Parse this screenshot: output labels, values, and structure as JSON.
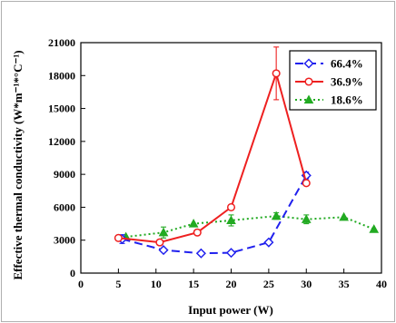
{
  "chart_data": {
    "type": "line",
    "xlabel": "Input power (W)",
    "ylabel": "Effective thermal conductivity (W*m⁻¹*°C⁻¹)",
    "xlim": [
      0,
      40
    ],
    "ylim": [
      0,
      21000
    ],
    "xticks": [
      "0",
      "5",
      "10",
      "15",
      "20",
      "25",
      "30",
      "35",
      "40"
    ],
    "yticks": [
      "0",
      "3000",
      "6000",
      "9000",
      "12000",
      "15000",
      "18000",
      "21000"
    ],
    "grid": false,
    "legend_position": "top-right",
    "series": [
      {
        "name": "66.4%",
        "color": "#2020ee",
        "marker": "open-diamond",
        "line": "dashed",
        "x": [
          5.5,
          11,
          16,
          20,
          25,
          30
        ],
        "y": [
          3100,
          2100,
          1800,
          1850,
          2800,
          8900
        ],
        "err": [
          400,
          0,
          0,
          0,
          0,
          300
        ]
      },
      {
        "name": "36.9%",
        "color": "#ee2020",
        "marker": "open-circle",
        "line": "solid",
        "x": [
          5,
          10.5,
          15.5,
          20,
          26,
          30
        ],
        "y": [
          3200,
          2800,
          3700,
          6000,
          18200,
          8200
        ],
        "err": [
          0,
          0,
          0,
          0,
          2400,
          0
        ]
      },
      {
        "name": "18.6%",
        "color": "#22aa22",
        "marker": "filled-triangle",
        "line": "dotted",
        "x": [
          6,
          11,
          15,
          20,
          26,
          30,
          35,
          39
        ],
        "y": [
          3300,
          3700,
          4500,
          4800,
          5200,
          4900,
          5100,
          4000
        ],
        "err": [
          0,
          500,
          0,
          500,
          300,
          400,
          0,
          0
        ]
      }
    ]
  }
}
